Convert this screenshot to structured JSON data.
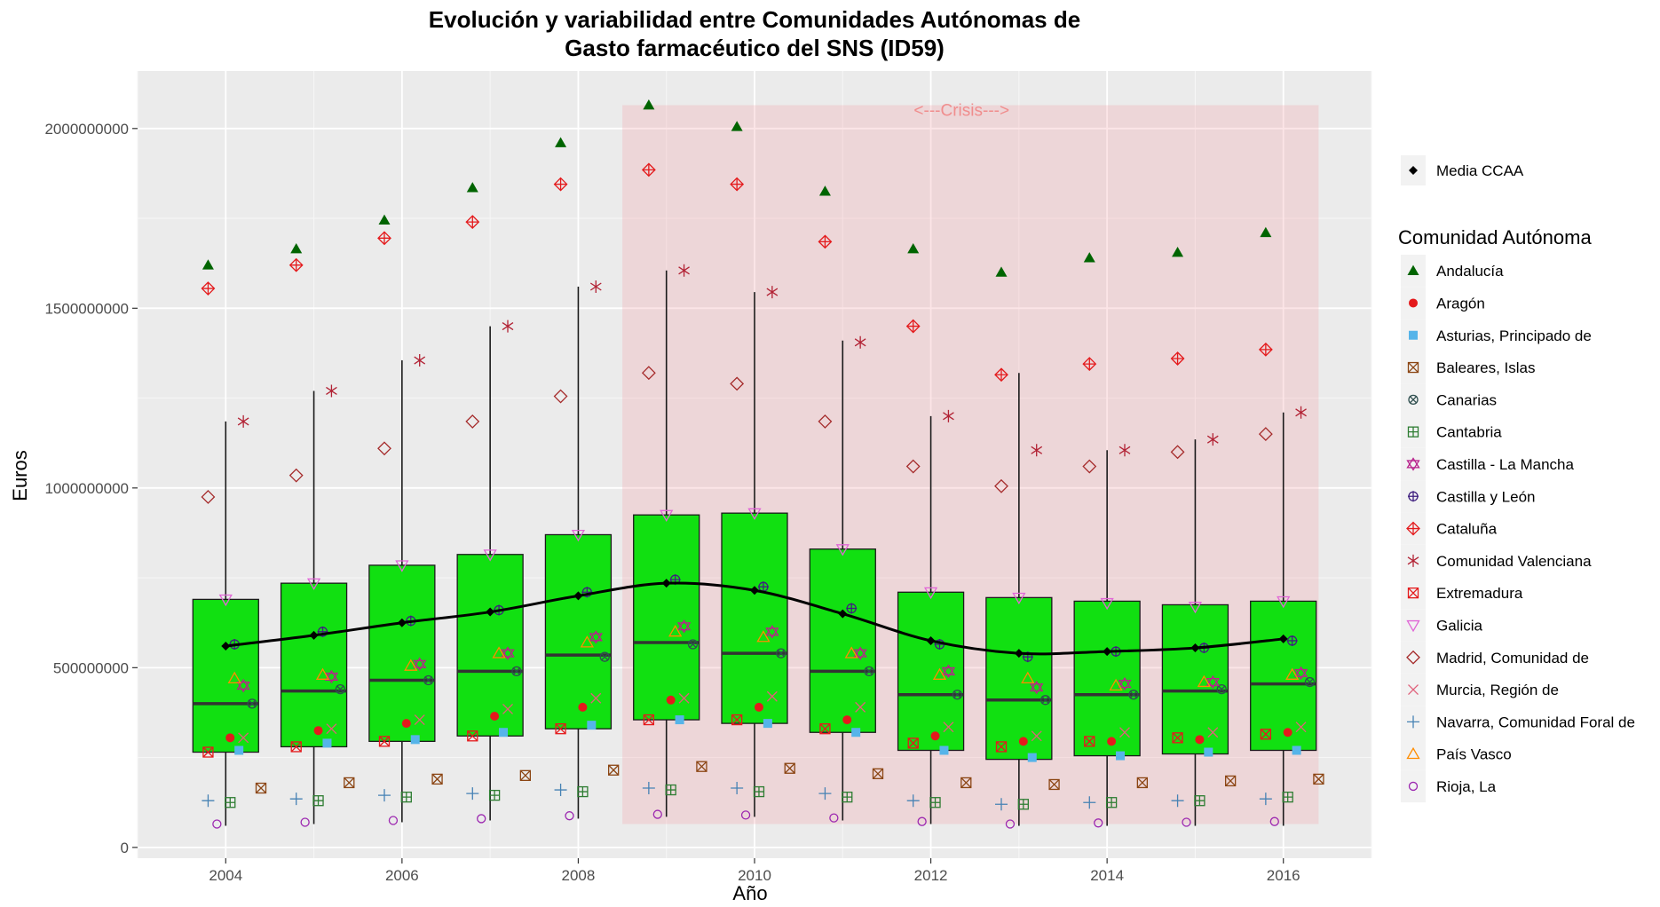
{
  "title_line1": "Evolución y variabilidad entre Comunidades Autónomas de",
  "title_line2": "Gasto farmacéutico del SNS (ID59)",
  "chart_data": {
    "type": "box",
    "title": "Evolución y variabilidad entre Comunidades Autónomas de Gasto farmacéutico del SNS (ID59)",
    "xlabel": "Año",
    "ylabel": "Euros",
    "xlim": [
      2003.0,
      2017.0
    ],
    "ylim": [
      -30000000,
      2160000000
    ],
    "x_ticks": [
      2004,
      2006,
      2008,
      2010,
      2012,
      2014,
      2016
    ],
    "y_ticks": [
      0,
      500000000,
      1000000000,
      1500000000,
      2000000000
    ],
    "y_tick_labels": [
      "0",
      "500000000",
      "1000000000",
      "1500000000",
      "2000000000"
    ],
    "years": [
      2004,
      2005,
      2006,
      2007,
      2008,
      2009,
      2010,
      2011,
      2012,
      2013,
      2014,
      2015,
      2016
    ],
    "crisis": {
      "label": "<---Crisis--->",
      "x_from": 2008.5,
      "x_to": 2016.4,
      "color": "#f4a0a8"
    },
    "boxes": [
      {
        "year": 2004,
        "whisker_low": 60000000,
        "q1": 265000000,
        "median": 400000000,
        "q3": 690000000,
        "whisker_high": 1185000000
      },
      {
        "year": 2005,
        "whisker_low": 65000000,
        "q1": 280000000,
        "median": 435000000,
        "q3": 735000000,
        "whisker_high": 1270000000
      },
      {
        "year": 2006,
        "whisker_low": 70000000,
        "q1": 295000000,
        "median": 465000000,
        "q3": 785000000,
        "whisker_high": 1355000000
      },
      {
        "year": 2007,
        "whisker_low": 75000000,
        "q1": 310000000,
        "median": 490000000,
        "q3": 815000000,
        "whisker_high": 1450000000
      },
      {
        "year": 2008,
        "whisker_low": 80000000,
        "q1": 330000000,
        "median": 535000000,
        "q3": 870000000,
        "whisker_high": 1560000000
      },
      {
        "year": 2009,
        "whisker_low": 85000000,
        "q1": 355000000,
        "median": 570000000,
        "q3": 925000000,
        "whisker_high": 1605000000
      },
      {
        "year": 2010,
        "whisker_low": 85000000,
        "q1": 345000000,
        "median": 540000000,
        "q3": 930000000,
        "whisker_high": 1545000000
      },
      {
        "year": 2011,
        "whisker_low": 75000000,
        "q1": 320000000,
        "median": 490000000,
        "q3": 830000000,
        "whisker_high": 1410000000
      },
      {
        "year": 2012,
        "whisker_low": 65000000,
        "q1": 270000000,
        "median": 425000000,
        "q3": 710000000,
        "whisker_high": 1200000000
      },
      {
        "year": 2013,
        "whisker_low": 60000000,
        "q1": 245000000,
        "median": 410000000,
        "q3": 695000000,
        "whisker_high": 1320000000
      },
      {
        "year": 2014,
        "whisker_low": 60000000,
        "q1": 255000000,
        "median": 425000000,
        "q3": 685000000,
        "whisker_high": 1105000000
      },
      {
        "year": 2015,
        "whisker_low": 60000000,
        "q1": 260000000,
        "median": 435000000,
        "q3": 675000000,
        "whisker_high": 1135000000
      },
      {
        "year": 2016,
        "whisker_low": 60000000,
        "q1": 270000000,
        "median": 455000000,
        "q3": 685000000,
        "whisker_high": 1210000000
      }
    ],
    "box_fill": "#11e011",
    "mean_series": {
      "name": "Media CCAA",
      "x": [
        2004,
        2005,
        2006,
        2007,
        2008,
        2009,
        2010,
        2011,
        2012,
        2013,
        2014,
        2015,
        2016
      ],
      "values": [
        560000000,
        590000000,
        625000000,
        655000000,
        700000000,
        735000000,
        715000000,
        650000000,
        575000000,
        540000000,
        545000000,
        555000000,
        580000000
      ]
    },
    "legend": {
      "mean_label": "Media CCAA",
      "title": "Comunidad Autónoma",
      "position": "right"
    },
    "series": [
      {
        "name": "Andalucía",
        "shape": "triangle",
        "color": "#006400",
        "offset": -0.2,
        "values": [
          1620000000,
          1665000000,
          1745000000,
          1835000000,
          1960000000,
          2065000000,
          2005000000,
          1825000000,
          1665000000,
          1600000000,
          1640000000,
          1655000000,
          1710000000
        ]
      },
      {
        "name": "Aragón",
        "shape": "dot",
        "color": "#e41a1c",
        "offset": 0.05,
        "values": [
          305000000,
          325000000,
          345000000,
          365000000,
          390000000,
          410000000,
          390000000,
          355000000,
          310000000,
          295000000,
          295000000,
          300000000,
          320000000
        ]
      },
      {
        "name": "Asturias, Principado de",
        "shape": "square",
        "color": "#56b4e9",
        "offset": 0.15,
        "values": [
          270000000,
          290000000,
          300000000,
          320000000,
          340000000,
          355000000,
          345000000,
          320000000,
          270000000,
          250000000,
          255000000,
          265000000,
          270000000
        ]
      },
      {
        "name": "Baleares, Islas",
        "shape": "squarex",
        "color": "#8b4513",
        "offset": 0.4,
        "values": [
          165000000,
          180000000,
          190000000,
          200000000,
          215000000,
          225000000,
          220000000,
          205000000,
          180000000,
          175000000,
          180000000,
          185000000,
          190000000
        ]
      },
      {
        "name": "Canarias",
        "shape": "xcircle",
        "color": "#2f4f4f",
        "offset": 0.3,
        "values": [
          400000000,
          440000000,
          465000000,
          490000000,
          530000000,
          565000000,
          540000000,
          490000000,
          425000000,
          410000000,
          425000000,
          440000000,
          460000000
        ]
      },
      {
        "name": "Cantabria",
        "shape": "squareplus",
        "color": "#2e7d32",
        "offset": 0.05,
        "values": [
          125000000,
          130000000,
          140000000,
          145000000,
          155000000,
          160000000,
          155000000,
          140000000,
          125000000,
          120000000,
          125000000,
          130000000,
          140000000
        ]
      },
      {
        "name": "Castilla - La Mancha",
        "shape": "star",
        "color": "#b8228c",
        "offset": 0.2,
        "values": [
          450000000,
          475000000,
          510000000,
          540000000,
          585000000,
          615000000,
          600000000,
          540000000,
          490000000,
          445000000,
          455000000,
          460000000,
          485000000
        ]
      },
      {
        "name": "Castilla y León",
        "shape": "pluscircle",
        "color": "#3f1f7f",
        "offset": 0.1,
        "values": [
          565000000,
          600000000,
          630000000,
          660000000,
          710000000,
          745000000,
          725000000,
          665000000,
          565000000,
          530000000,
          545000000,
          555000000,
          575000000
        ]
      },
      {
        "name": "Cataluña",
        "shape": "diamondplus",
        "color": "#e41a1c",
        "offset": -0.2,
        "values": [
          1555000000,
          1620000000,
          1695000000,
          1740000000,
          1845000000,
          1885000000,
          1845000000,
          1685000000,
          1450000000,
          1315000000,
          1345000000,
          1360000000,
          1385000000
        ]
      },
      {
        "name": "Comunidad Valenciana",
        "shape": "asterisk",
        "color": "#b22234",
        "offset": 0.2,
        "values": [
          1185000000,
          1270000000,
          1355000000,
          1450000000,
          1560000000,
          1605000000,
          1545000000,
          1405000000,
          1200000000,
          1105000000,
          1105000000,
          1135000000,
          1210000000
        ]
      },
      {
        "name": "Extremadura",
        "shape": "squarex",
        "color": "#e41a1c",
        "offset": -0.2,
        "values": [
          265000000,
          280000000,
          295000000,
          310000000,
          330000000,
          355000000,
          355000000,
          330000000,
          290000000,
          280000000,
          295000000,
          305000000,
          315000000
        ]
      },
      {
        "name": "Galicia",
        "shape": "invtriangle",
        "color": "#e066d6",
        "offset": 0.0,
        "values": [
          690000000,
          735000000,
          785000000,
          815000000,
          870000000,
          925000000,
          930000000,
          830000000,
          710000000,
          695000000,
          680000000,
          670000000,
          685000000
        ]
      },
      {
        "name": "Madrid, Comunidad de",
        "shape": "diamond",
        "color": "#a52a2a",
        "offset": -0.2,
        "values": [
          975000000,
          1035000000,
          1110000000,
          1185000000,
          1255000000,
          1320000000,
          1290000000,
          1185000000,
          1060000000,
          1005000000,
          1060000000,
          1100000000,
          1150000000
        ]
      },
      {
        "name": "Murcia, Región de",
        "shape": "x",
        "color": "#e0607a",
        "offset": 0.2,
        "values": [
          305000000,
          330000000,
          355000000,
          385000000,
          415000000,
          415000000,
          420000000,
          390000000,
          335000000,
          310000000,
          320000000,
          320000000,
          335000000
        ]
      },
      {
        "name": "Navarra, Comunidad Foral de",
        "shape": "plus",
        "color": "#4682b4",
        "offset": -0.2,
        "values": [
          130000000,
          135000000,
          145000000,
          150000000,
          160000000,
          165000000,
          165000000,
          150000000,
          130000000,
          120000000,
          125000000,
          130000000,
          135000000
        ]
      },
      {
        "name": "País Vasco",
        "shape": "otriangle",
        "color": "#ff8c00",
        "offset": 0.1,
        "values": [
          470000000,
          480000000,
          505000000,
          540000000,
          570000000,
          600000000,
          585000000,
          540000000,
          480000000,
          470000000,
          450000000,
          460000000,
          480000000
        ]
      },
      {
        "name": "Rioja, La",
        "shape": "circle",
        "color": "#9c27b0",
        "offset": -0.1,
        "values": [
          65000000,
          70000000,
          75000000,
          80000000,
          88000000,
          92000000,
          90000000,
          82000000,
          72000000,
          65000000,
          68000000,
          70000000,
          72000000
        ]
      }
    ]
  }
}
